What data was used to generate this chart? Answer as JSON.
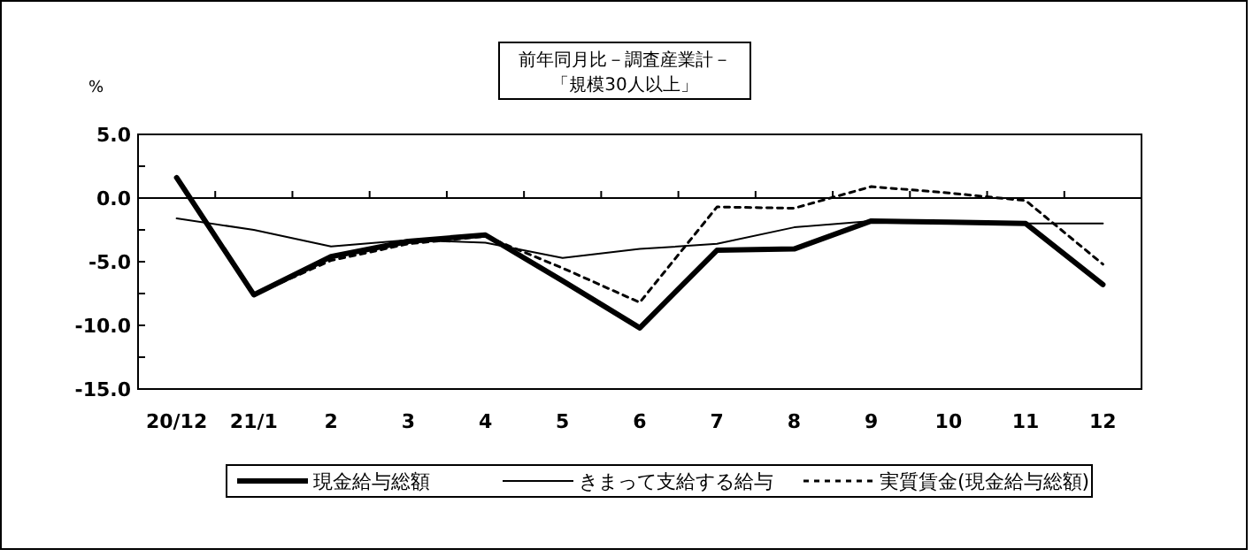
{
  "chart_data": {
    "type": "line",
    "title": "前年同月比－調査産業計－",
    "subtitle": "「規模30人以上」",
    "ylabel": "%",
    "categories": [
      "20/12",
      "21/1",
      "2",
      "3",
      "4",
      "5",
      "6",
      "7",
      "8",
      "9",
      "10",
      "11",
      "12"
    ],
    "ylim": [
      -15,
      5
    ],
    "yticks": [
      {
        "value": 5,
        "label": "5.0"
      },
      {
        "value": 2.5,
        "label": null
      },
      {
        "value": 0,
        "label": "0.0"
      },
      {
        "value": -2.5,
        "label": null
      },
      {
        "value": -5,
        "label": "-5.0"
      },
      {
        "value": -7.5,
        "label": null
      },
      {
        "value": -10,
        "label": "-10.0"
      },
      {
        "value": -12.5,
        "label": null
      },
      {
        "value": -15,
        "label": "-15.0"
      }
    ],
    "legend": "bottom",
    "marker": "none",
    "series": [
      {
        "name": "現金給与総額",
        "color": "#000000",
        "line_style": "solid",
        "values": [
          1.6,
          -7.6,
          -4.6,
          -3.4,
          -2.9,
          -6.5,
          -10.2,
          -4.1,
          -4.0,
          -1.8,
          -1.9,
          -2.0,
          -6.8
        ]
      },
      {
        "name": "きまって支給する給与",
        "color": "#000000",
        "line_style": "solid",
        "values": [
          -1.6,
          -2.5,
          -3.8,
          -3.3,
          -3.5,
          -4.7,
          -4.0,
          -3.6,
          -2.3,
          -1.8,
          -1.8,
          -2.0,
          -2.0
        ]
      },
      {
        "name": "実質賃金(現金給与総額)",
        "color": "#000000",
        "line_style": "dashed",
        "values": [
          1.6,
          -7.6,
          -4.9,
          -3.6,
          -3.0,
          -5.5,
          -8.2,
          -0.7,
          -0.8,
          0.9,
          0.4,
          -0.2,
          -5.2
        ]
      }
    ]
  }
}
